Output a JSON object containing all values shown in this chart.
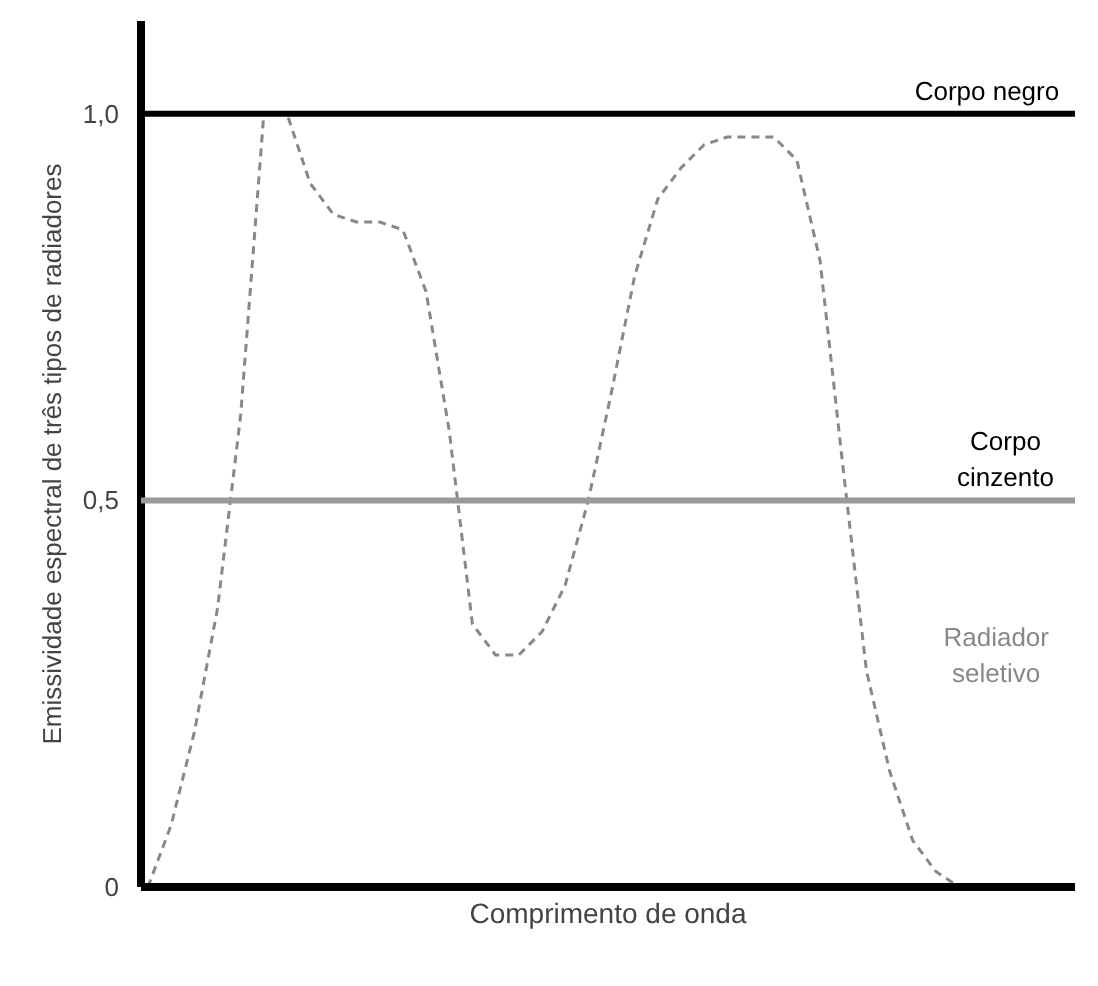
{
  "chart_data": {
    "type": "line",
    "xlabel": "Comprimento de onda",
    "ylabel": "Emissividade espectral de três tipos de radiadores",
    "categories": [
      null,
      null,
      null,
      null,
      null,
      null,
      null,
      null,
      null,
      null,
      null,
      null,
      null,
      null,
      null,
      null,
      null,
      null,
      null,
      null,
      null,
      null,
      null,
      null,
      null,
      null,
      null,
      null,
      null,
      null,
      null,
      null,
      null,
      null,
      null,
      null
    ],
    "series": [
      {
        "name": "Radiador seletivo",
        "color": "#888888",
        "line_style": "dashed",
        "values": [
          0,
          0.08,
          0.2,
          0.36,
          0.61,
          1.0,
          1.0,
          0.91,
          0.87,
          0.86,
          0.86,
          0.85,
          0.77,
          0.59,
          0.34,
          0.3,
          0.3,
          0.33,
          0.39,
          0.5,
          0.64,
          0.79,
          0.89,
          0.93,
          0.96,
          0.97,
          0.97,
          0.97,
          0.94,
          0.81,
          0.54,
          0.28,
          0.15,
          0.06,
          0.02,
          0
        ]
      }
    ],
    "ylim": [
      0,
      1.12
    ],
    "yticks": [
      0,
      {
        "value": 0.5,
        "label": "0,5"
      },
      {
        "value": 1.0,
        "label": "1,0"
      }
    ],
    "ref_lines": [
      {
        "axis": "y",
        "value": 1.0,
        "label": "Corpo negro",
        "color": "#000000"
      },
      {
        "axis": "y",
        "value": 0.5,
        "label": "Corpo cinzento",
        "color": "#999999"
      }
    ],
    "tick_labels": "y",
    "legend": false,
    "marker": "none"
  }
}
